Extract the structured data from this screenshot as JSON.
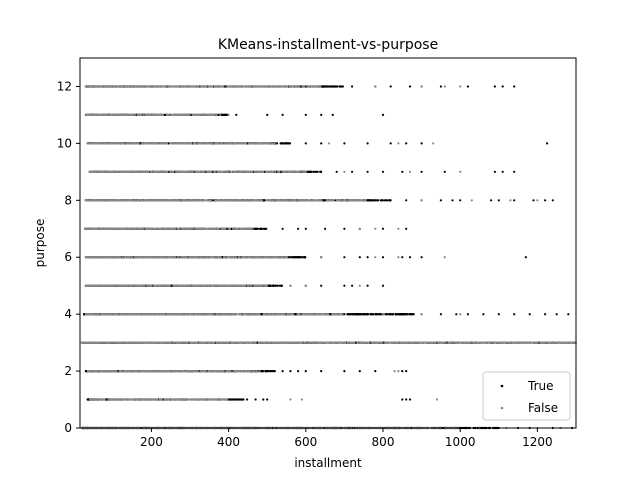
{
  "chart_data": {
    "type": "scatter",
    "title": "KMeans-installment-vs-purpose",
    "xlabel": "installment",
    "ylabel": "purpose",
    "xlim": [
      15,
      1300
    ],
    "ylim": [
      0,
      13
    ],
    "xticks": [
      200,
      400,
      600,
      800,
      1000,
      1200
    ],
    "yticks": [
      0,
      2,
      4,
      6,
      8,
      10,
      12
    ],
    "grid": false,
    "legend_position": "lower-right",
    "series": [
      {
        "name": "True",
        "color": "#000000",
        "rows": [
          {
            "y": 0,
            "min": 20,
            "dense_max": 1100,
            "max": 1290,
            "outliers": [
              1100,
              1150,
              1180,
              1240,
              1260,
              1290
            ]
          },
          {
            "y": 1,
            "min": 35,
            "dense_max": 450,
            "max": 870,
            "outliers": [
              470,
              490,
              500,
              850,
              860,
              870
            ]
          },
          {
            "y": 2,
            "min": 30,
            "dense_max": 520,
            "max": 860,
            "outliers": [
              540,
              560,
              580,
              600,
              640,
              700,
              740,
              780,
              850,
              860
            ]
          },
          {
            "y": 3,
            "min": 20,
            "dense_max": 1300,
            "max": 1300,
            "outliers": []
          },
          {
            "y": 4,
            "min": 25,
            "dense_max": 880,
            "max": 1280,
            "outliers": [
              900,
              950,
              990,
              1020,
              1060,
              1100,
              1140,
              1180,
              1220,
              1250,
              1280
            ]
          },
          {
            "y": 5,
            "min": 30,
            "dense_max": 540,
            "max": 800,
            "outliers": [
              560,
              600,
              640,
              700,
              720,
              760,
              800
            ]
          },
          {
            "y": 6,
            "min": 30,
            "dense_max": 600,
            "max": 1170,
            "outliers": [
              640,
              700,
              740,
              760,
              800,
              850,
              870,
              900,
              1170
            ]
          },
          {
            "y": 7,
            "min": 28,
            "dense_max": 500,
            "max": 860,
            "outliers": [
              540,
              580,
              600,
              650,
              700,
              740,
              800,
              860
            ]
          },
          {
            "y": 8,
            "min": 30,
            "dense_max": 820,
            "max": 1240,
            "outliers": [
              860,
              900,
              950,
              980,
              1000,
              1080,
              1100,
              1140,
              1190,
              1220,
              1240
            ]
          },
          {
            "y": 9,
            "min": 40,
            "dense_max": 640,
            "max": 1140,
            "outliers": [
              680,
              720,
              760,
              800,
              850,
              900,
              960,
              1090,
              1110,
              1140
            ]
          },
          {
            "y": 10,
            "min": 35,
            "dense_max": 560,
            "max": 1225,
            "outliers": [
              600,
              640,
              700,
              760,
              820,
              860,
              900,
              1225
            ]
          },
          {
            "y": 11,
            "min": 30,
            "dense_max": 400,
            "max": 800,
            "outliers": [
              420,
              500,
              540,
              600,
              640,
              670,
              800
            ]
          },
          {
            "y": 12,
            "min": 30,
            "dense_max": 700,
            "max": 1140,
            "outliers": [
              720,
              780,
              820,
              870,
              900,
              950,
              1020,
              1090,
              1110,
              1140
            ]
          }
        ]
      },
      {
        "name": "False",
        "color": "#888888",
        "rows": [
          {
            "y": 0,
            "min": 20,
            "dense_max": 1000,
            "max": 1260,
            "outliers": [
              1050,
              1120,
              1200,
              1260
            ]
          },
          {
            "y": 1,
            "min": 40,
            "dense_max": 400,
            "max": 940,
            "outliers": [
              560,
              590,
              940
            ]
          },
          {
            "y": 2,
            "min": 35,
            "dense_max": 480,
            "max": 840,
            "outliers": [
              830,
              840
            ]
          },
          {
            "y": 3,
            "min": 20,
            "dense_max": 1300,
            "max": 1300,
            "outliers": []
          },
          {
            "y": 4,
            "min": 30,
            "dense_max": 700,
            "max": 1000,
            "outliers": [
              800,
              900,
              1000
            ]
          },
          {
            "y": 5,
            "min": 30,
            "dense_max": 500,
            "max": 740,
            "outliers": [
              560,
              600,
              740
            ]
          },
          {
            "y": 6,
            "min": 30,
            "dense_max": 560,
            "max": 960,
            "outliers": [
              640,
              780,
              840,
              960
            ]
          },
          {
            "y": 7,
            "min": 28,
            "dense_max": 460,
            "max": 840,
            "outliers": [
              740,
              780,
              840
            ]
          },
          {
            "y": 8,
            "min": 30,
            "dense_max": 760,
            "max": 1200,
            "outliers": [
              900,
              1030,
              1130,
              1200
            ]
          },
          {
            "y": 9,
            "min": 40,
            "dense_max": 600,
            "max": 1000,
            "outliers": [
              700,
              870,
              1000
            ]
          },
          {
            "y": 10,
            "min": 35,
            "dense_max": 520,
            "max": 930,
            "outliers": [
              660,
              840,
              930
            ]
          },
          {
            "y": 11,
            "min": 30,
            "dense_max": 380,
            "max": 400,
            "outliers": [
              400
            ]
          },
          {
            "y": 12,
            "min": 30,
            "dense_max": 640,
            "max": 1000,
            "outliers": [
              780,
              900,
              960,
              1000
            ]
          }
        ]
      }
    ]
  }
}
